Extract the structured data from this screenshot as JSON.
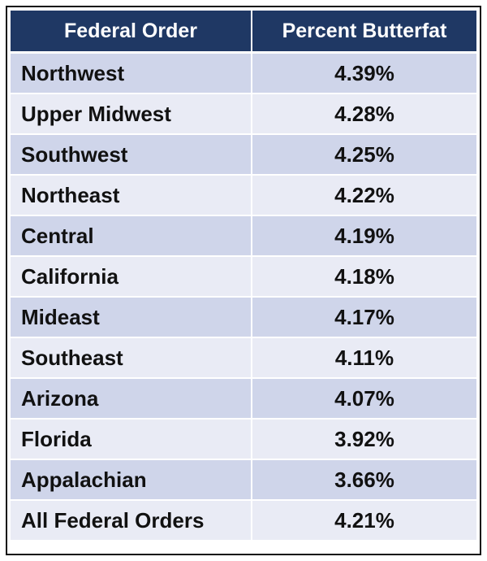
{
  "chart_data": {
    "type": "table",
    "columns": [
      "Federal Order",
      "Percent Butterfat"
    ],
    "rows": [
      {
        "region": "Northwest",
        "percent": "4.39%"
      },
      {
        "region": "Upper Midwest",
        "percent": "4.28%"
      },
      {
        "region": "Southwest",
        "percent": "4.25%"
      },
      {
        "region": "Northeast",
        "percent": "4.22%"
      },
      {
        "region": "Central",
        "percent": "4.19%"
      },
      {
        "region": "California",
        "percent": "4.18%"
      },
      {
        "region": "Mideast",
        "percent": "4.17%"
      },
      {
        "region": "Southeast",
        "percent": "4.11%"
      },
      {
        "region": "Arizona",
        "percent": "4.07%"
      },
      {
        "region": "Florida",
        "percent": "3.92%"
      },
      {
        "region": "Appalachian",
        "percent": "3.66%"
      },
      {
        "region": "All Federal Orders",
        "percent": "4.21%"
      }
    ]
  },
  "colors": {
    "header_bg": "#1f3864",
    "header_text": "#ffffff",
    "row_dark": "#cfd5ea",
    "row_light": "#e9ebf5"
  }
}
